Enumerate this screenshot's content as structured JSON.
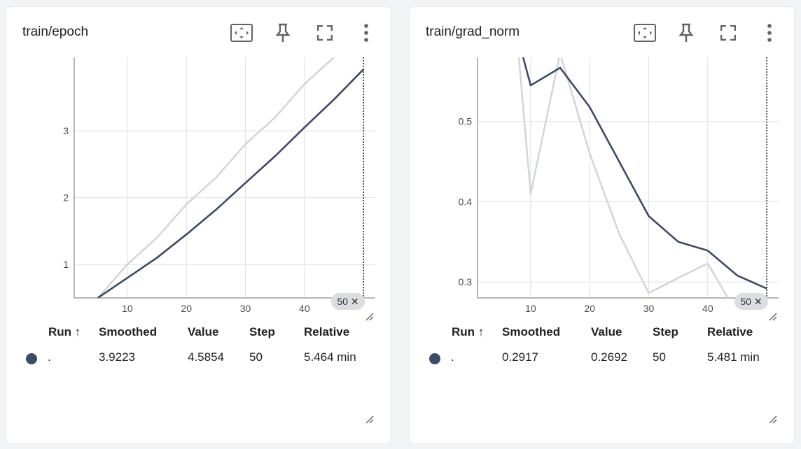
{
  "cards": [
    {
      "title": "train/epoch",
      "step_badge": "50",
      "table": {
        "headers": {
          "run": "Run ↑",
          "smoothed": "Smoothed",
          "value": "Value",
          "step": "Step",
          "relative": "Relative"
        },
        "row": {
          "run": ".",
          "smoothed": "3.9223",
          "value": "4.5854",
          "step": "50",
          "relative": "5.464 min"
        }
      }
    },
    {
      "title": "train/grad_norm",
      "step_badge": "50",
      "table": {
        "headers": {
          "run": "Run ↑",
          "smoothed": "Smoothed",
          "value": "Value",
          "step": "Step",
          "relative": "Relative"
        },
        "row": {
          "run": ".",
          "smoothed": "0.2917",
          "value": "0.2692",
          "step": "50",
          "relative": "5.481 min"
        }
      }
    }
  ],
  "icons": [
    "fit-to-data-icon",
    "pin-icon",
    "fullscreen-icon",
    "more-vert-icon",
    "close-icon",
    "resize-handle-icon"
  ],
  "colors": {
    "smoothed": "#3c4b63",
    "raw": "#cfd3db",
    "grid": "#e0e0e0",
    "axis": "#9e9e9e",
    "run_dot": "#3c4b63"
  },
  "chart_data": [
    {
      "type": "line",
      "title": "train/epoch",
      "xlim": [
        1,
        52
      ],
      "ylim": [
        0.5,
        4.1
      ],
      "x_ticks": [
        10,
        20,
        30,
        40
      ],
      "y_ticks": [
        1,
        2,
        3
      ],
      "cursor_x": 50,
      "grid": true,
      "series": [
        {
          "role": "raw",
          "x": [
            5,
            10,
            15,
            20,
            25,
            30,
            35,
            40,
            45,
            50
          ],
          "y": [
            0.5,
            1.0,
            1.4,
            1.9,
            2.3,
            2.8,
            3.2,
            3.7,
            4.1,
            4.59
          ]
        },
        {
          "role": "smoothed",
          "x": [
            5,
            10,
            15,
            20,
            25,
            30,
            35,
            40,
            45,
            50
          ],
          "y": [
            0.5,
            0.8,
            1.1,
            1.45,
            1.82,
            2.22,
            2.62,
            3.05,
            3.47,
            3.92
          ]
        }
      ]
    },
    {
      "type": "line",
      "title": "train/grad_norm",
      "xlim": [
        1,
        52
      ],
      "ylim": [
        0.28,
        0.58
      ],
      "x_ticks": [
        10,
        20,
        30,
        40
      ],
      "y_ticks": [
        0.3,
        0.4,
        0.5
      ],
      "cursor_x": 50,
      "grid": true,
      "series": [
        {
          "role": "raw",
          "x": [
            8,
            10,
            15,
            20,
            25,
            30,
            35,
            40,
            45
          ],
          "y": [
            0.58,
            0.41,
            0.585,
            0.46,
            0.36,
            0.286,
            0.305,
            0.323,
            0.26
          ]
        },
        {
          "role": "smoothed",
          "x": [
            8,
            10,
            15,
            20,
            25,
            30,
            35,
            40,
            45,
            50
          ],
          "y": [
            0.6,
            0.545,
            0.567,
            0.518,
            0.45,
            0.382,
            0.35,
            0.339,
            0.308,
            0.2917
          ]
        }
      ]
    }
  ]
}
